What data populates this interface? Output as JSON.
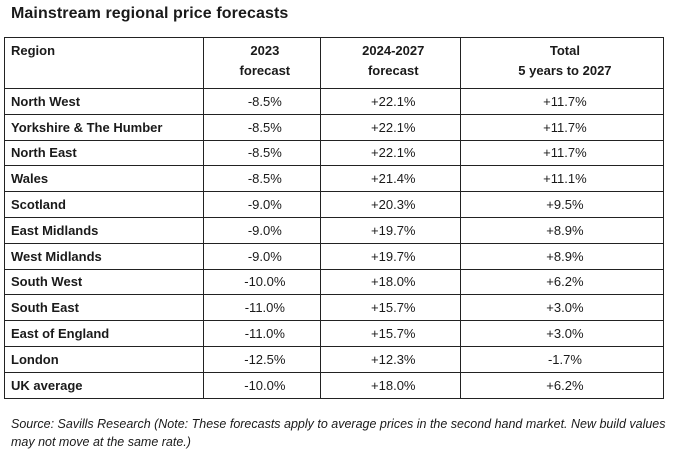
{
  "title": "Mainstream regional price forecasts",
  "table": {
    "headers": {
      "region": "Region",
      "col1": [
        "2023",
        "forecast"
      ],
      "col2": [
        "2024-2027",
        "forecast"
      ],
      "col3": [
        "Total",
        "5 years to 2027"
      ]
    },
    "rows": [
      {
        "region": "North West",
        "f2023": "-8.5%",
        "f2024_2027": "+22.1%",
        "total": "+11.7%"
      },
      {
        "region": "Yorkshire & The Humber",
        "f2023": "-8.5%",
        "f2024_2027": "+22.1%",
        "total": "+11.7%"
      },
      {
        "region": "North East",
        "f2023": "-8.5%",
        "f2024_2027": "+22.1%",
        "total": "+11.7%"
      },
      {
        "region": "Wales",
        "f2023": "-8.5%",
        "f2024_2027": "+21.4%",
        "total": "+11.1%"
      },
      {
        "region": "Scotland",
        "f2023": "-9.0%",
        "f2024_2027": "+20.3%",
        "total": "+9.5%"
      },
      {
        "region": "East Midlands",
        "f2023": "-9.0%",
        "f2024_2027": "+19.7%",
        "total": "+8.9%"
      },
      {
        "region": "West Midlands",
        "f2023": "-9.0%",
        "f2024_2027": "+19.7%",
        "total": "+8.9%"
      },
      {
        "region": "South West",
        "f2023": "-10.0%",
        "f2024_2027": "+18.0%",
        "total": "+6.2%"
      },
      {
        "region": "South East",
        "f2023": "-11.0%",
        "f2024_2027": "+15.7%",
        "total": "+3.0%"
      },
      {
        "region": "East of England",
        "f2023": "-11.0%",
        "f2024_2027": "+15.7%",
        "total": "+3.0%"
      },
      {
        "region": "London",
        "f2023": "-12.5%",
        "f2024_2027": "+12.3%",
        "total": "-1.7%"
      },
      {
        "region": "UK average",
        "f2023": "-10.0%",
        "f2024_2027": "+18.0%",
        "total": "+6.2%"
      }
    ]
  },
  "source_note": "Source: Savills Research (Note: These forecasts apply to average prices in the second hand market. New build values may not move at the same rate.)",
  "colors": {
    "text": "#1a1a1a",
    "border": "#222222",
    "background": "#ffffff"
  }
}
